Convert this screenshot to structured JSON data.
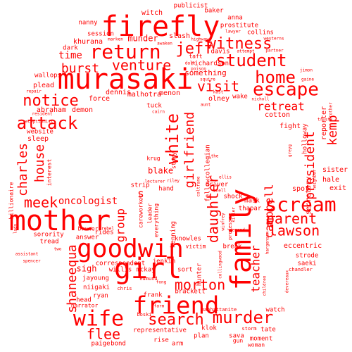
{
  "cloud": {
    "color": "#ff0000",
    "words": [
      {
        "text": "firefly",
        "size": 40
      },
      {
        "text": "murasaki",
        "size": 40
      },
      {
        "text": "mother",
        "size": 40
      },
      {
        "text": "goodwin",
        "size": 36
      },
      {
        "text": "girl",
        "size": 40
      },
      {
        "text": "friend",
        "size": 34
      },
      {
        "text": "family",
        "size": 40
      },
      {
        "text": "wife",
        "size": 30
      },
      {
        "text": "return",
        "size": 28
      },
      {
        "text": "student",
        "size": 24
      },
      {
        "text": "escape",
        "size": 26
      },
      {
        "text": "scream",
        "size": 28
      },
      {
        "text": "murder",
        "size": 24
      },
      {
        "text": "search",
        "size": 22
      },
      {
        "text": "morton",
        "size": 20
      },
      {
        "text": "attack",
        "size": 24
      },
      {
        "text": "notice",
        "size": 22
      },
      {
        "text": "home",
        "size": 24
      },
      {
        "text": "jeff",
        "size": 22
      },
      {
        "text": "witness",
        "size": 22
      },
      {
        "text": "venture",
        "size": 20
      },
      {
        "text": "burst",
        "size": 18
      },
      {
        "text": "visit",
        "size": 20
      },
      {
        "text": "white",
        "size": 24
      },
      {
        "text": "girlfriend",
        "size": 18
      },
      {
        "text": "daughter",
        "size": 20
      },
      {
        "text": "parent",
        "size": 20
      },
      {
        "text": "lawson",
        "size": 20
      },
      {
        "text": "flee",
        "size": 20
      },
      {
        "text": "meek",
        "size": 20
      },
      {
        "text": "charles",
        "size": 18
      },
      {
        "text": "house",
        "size": 18
      },
      {
        "text": "shaneequa",
        "size": 18
      },
      {
        "text": "campbell",
        "size": 16
      },
      {
        "text": "president",
        "size": 18
      },
      {
        "text": "kemp",
        "size": 18
      },
      {
        "text": "retreat",
        "size": 16
      },
      {
        "text": "teacher",
        "size": 16
      },
      {
        "text": "oncologist",
        "size": 14
      },
      {
        "text": "group",
        "size": 16
      },
      {
        "text": "sigh",
        "size": 12
      },
      {
        "text": "blake",
        "size": 12
      },
      {
        "text": "time",
        "size": 14
      },
      {
        "text": "munder",
        "size": 12
      },
      {
        "text": "something",
        "size": 11
      },
      {
        "text": "s",
        "size": 16
      },
      {
        "text": "fellowcollegian",
        "size": 9
      },
      {
        "text": "richardson",
        "size": 9
      },
      {
        "text": "eccentric",
        "size": 10
      },
      {
        "text": "secretary",
        "size": 10
      },
      {
        "text": "sister",
        "size": 10
      },
      {
        "text": "exit",
        "size": 10
      },
      {
        "text": "spot",
        "size": 10
      },
      {
        "text": "hale",
        "size": 10
      },
      {
        "text": "fight",
        "size": 10
      },
      {
        "text": "reporter",
        "size": 10
      },
      {
        "text": "cotton",
        "size": 10
      },
      {
        "text": "holloway",
        "size": 9
      },
      {
        "text": "olney",
        "size": 10
      },
      {
        "text": "force",
        "size": 10
      },
      {
        "text": "dennis",
        "size": 10
      },
      {
        "text": "malhotra",
        "size": 10
      },
      {
        "text": "menon",
        "size": 10
      },
      {
        "text": "abraham",
        "size": 10
      },
      {
        "text": "demon",
        "size": 10
      },
      {
        "text": "website",
        "size": 9
      },
      {
        "text": "sleep",
        "size": 10
      },
      {
        "text": "interest",
        "size": 8
      },
      {
        "text": "billionaire",
        "size": 8
      },
      {
        "text": "khurana",
        "size": 10
      },
      {
        "text": "dark",
        "size": 9
      },
      {
        "text": "plead",
        "size": 10
      },
      {
        "text": "wallops",
        "size": 9
      },
      {
        "text": "session",
        "size": 9
      },
      {
        "text": "nanny",
        "size": 9
      },
      {
        "text": "witch",
        "size": 10
      },
      {
        "text": "publicist",
        "size": 9
      },
      {
        "text": "baker",
        "size": 9
      },
      {
        "text": "anna",
        "size": 9
      },
      {
        "text": "prostitute",
        "size": 9
      },
      {
        "text": "collins",
        "size": 9
      },
      {
        "text": "slash",
        "size": 10
      },
      {
        "text": "davis",
        "size": 9
      },
      {
        "text": "taft",
        "size": 8
      },
      {
        "text": "wake",
        "size": 9
      },
      {
        "text": "tuck",
        "size": 9
      },
      {
        "text": "krug",
        "size": 8
      },
      {
        "text": "story",
        "size": 8
      },
      {
        "text": "driver",
        "size": 9
      },
      {
        "text": "strip",
        "size": 9
      },
      {
        "text": "hand",
        "size": 9
      },
      {
        "text": "shock",
        "size": 9
      },
      {
        "text": "mask",
        "size": 9
      },
      {
        "text": "thapar",
        "size": 9
      },
      {
        "text": "bruner",
        "size": 8
      },
      {
        "text": "answer",
        "size": 9
      },
      {
        "text": "sorority",
        "size": 9
      },
      {
        "text": "tread",
        "size": 9
      },
      {
        "text": "rides",
        "size": 9
      },
      {
        "text": "careworker",
        "size": 8
      },
      {
        "text": "leader",
        "size": 8
      },
      {
        "text": "everything",
        "size": 8
      },
      {
        "text": "henning",
        "size": 9
      },
      {
        "text": "knowles",
        "size": 9
      },
      {
        "text": "victim",
        "size": 8
      },
      {
        "text": "break",
        "size": 9
      },
      {
        "text": "strode",
        "size": 9
      },
      {
        "text": "saeki",
        "size": 9
      },
      {
        "text": "jenkin",
        "size": 9
      },
      {
        "text": "correspondent",
        "size": 9
      },
      {
        "text": "willis",
        "size": 9
      },
      {
        "text": "mckay",
        "size": 9
      },
      {
        "text": "sort",
        "size": 9
      },
      {
        "text": "hunter",
        "size": 9
      },
      {
        "text": "jayoung",
        "size": 9
      },
      {
        "text": "niigaki",
        "size": 9
      },
      {
        "text": "ryan",
        "size": 9
      },
      {
        "text": "head",
        "size": 9
      },
      {
        "text": "narrator",
        "size": 8
      },
      {
        "text": "frank",
        "size": 9
      },
      {
        "text": "brackett",
        "size": 9
      },
      {
        "text": "bond",
        "size": 9
      },
      {
        "text": "representative",
        "size": 9
      },
      {
        "text": "plan",
        "size": 9
      },
      {
        "text": "paige",
        "size": 9
      },
      {
        "text": "rise",
        "size": 9
      },
      {
        "text": "arm",
        "size": 9
      },
      {
        "text": "klok",
        "size": 9
      },
      {
        "text": "tate",
        "size": 9
      },
      {
        "text": "watch",
        "size": 9
      },
      {
        "text": "sava",
        "size": 9
      },
      {
        "text": "gun",
        "size": 8
      },
      {
        "text": "moment",
        "size": 9
      },
      {
        "text": "woman",
        "size": 8
      },
      {
        "text": "storm",
        "size": 7
      },
      {
        "text": "chris",
        "size": 7
      },
      {
        "text": "boski",
        "size": 7
      },
      {
        "text": "manhattanite",
        "size": 7
      },
      {
        "text": "fong",
        "size": 6
      },
      {
        "text": "farm",
        "size": 6
      },
      {
        "text": "edmund",
        "size": 7
      },
      {
        "text": "assistant",
        "size": 6
      },
      {
        "text": "spencer",
        "size": 6
      },
      {
        "text": "two",
        "size": 6
      },
      {
        "text": "lady",
        "size": 6
      },
      {
        "text": "rebel",
        "size": 6
      },
      {
        "text": "resident",
        "size": 6
      },
      {
        "text": "receptionist",
        "size": 6
      },
      {
        "text": "repair",
        "size": 6
      },
      {
        "text": "jimon",
        "size": 6
      },
      {
        "text": "gaine",
        "size": 6
      },
      {
        "text": "nicholl",
        "size": 6
      },
      {
        "text": "kast",
        "size": 6
      },
      {
        "text": "aunt",
        "size": 6
      },
      {
        "text": "cairn",
        "size": 6
      },
      {
        "text": "lecturer",
        "size": 6
      },
      {
        "text": "riley",
        "size": 6
      },
      {
        "text": "ellis",
        "size": 6
      },
      {
        "text": "snell",
        "size": 6
      },
      {
        "text": "coltrane",
        "size": 6
      },
      {
        "text": "winfrey",
        "size": 6
      },
      {
        "text": "killer",
        "size": 6
      },
      {
        "text": "demand",
        "size": 6
      },
      {
        "text": "hargensen",
        "size": 6
      },
      {
        "text": "collingwood",
        "size": 6
      },
      {
        "text": "children",
        "size": 6
      },
      {
        "text": "devereaux",
        "size": 6
      },
      {
        "text": "chandler",
        "size": 7
      },
      {
        "text": "neighbor",
        "size": 6
      },
      {
        "text": "greyg",
        "size": 6
      },
      {
        "text": "brother",
        "size": 6
      },
      {
        "text": "trust",
        "size": 6
      },
      {
        "text": "westerns",
        "size": 6
      },
      {
        "text": "partner",
        "size": 6
      },
      {
        "text": "attempt",
        "size": 6
      },
      {
        "text": "lawyer",
        "size": 6
      },
      {
        "text": "highway",
        "size": 6
      },
      {
        "text": "awaken",
        "size": 6
      },
      {
        "text": "poison",
        "size": 6
      },
      {
        "text": "marken",
        "size": 6
      },
      {
        "text": "dale",
        "size": 6
      },
      {
        "text": "squire",
        "size": 6
      },
      {
        "text": "professor",
        "size": 7
      },
      {
        "text": "the",
        "size": 6
      }
    ]
  }
}
